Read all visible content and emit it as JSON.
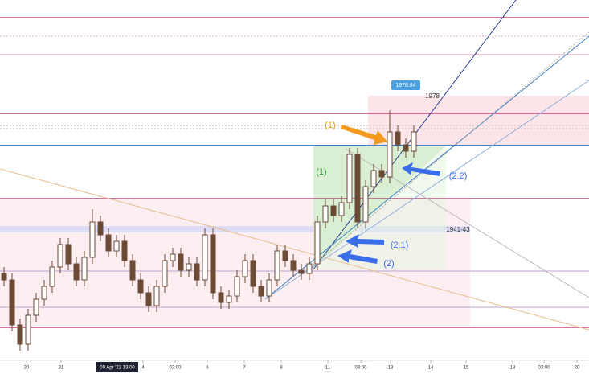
{
  "chart_data": {
    "type": "candlestick",
    "x": [
      0.5,
      1.5,
      2.5,
      3.5,
      4.5,
      5.5,
      6.5,
      7.5,
      8.5,
      9.5,
      10.5,
      11.5,
      12.5,
      13.5,
      14.5,
      15.5,
      16.5,
      17.5,
      18.5,
      19.5,
      20.5,
      21.5,
      22.5,
      23.5,
      24.5,
      25.5,
      26.5,
      27.5,
      28.5,
      29.5,
      30.5,
      31.5,
      32.5,
      33.5,
      34.5,
      35.5,
      36.5,
      37.5,
      38.5,
      39.5,
      40.5,
      41.5,
      42.5,
      43.5,
      44.5,
      45.5,
      46.5,
      47.5,
      48.5,
      49.5,
      50.5,
      51.5
    ],
    "open": [
      1928,
      1926,
      1912,
      1906,
      1915,
      1920,
      1924,
      1930,
      1937,
      1931,
      1926,
      1933,
      1944,
      1940,
      1935,
      1938,
      1932,
      1926,
      1922,
      1918,
      1924,
      1932,
      1934,
      1929,
      1931,
      1926,
      1940,
      1922,
      1919,
      1921,
      1927,
      1932,
      1924,
      1921,
      1926,
      1935,
      1932,
      1929,
      1928,
      1931,
      1944,
      1949,
      1946,
      1950,
      1965,
      1944,
      1955,
      1960,
      1958,
      1972,
      1968,
      1966
    ],
    "high": [
      1930,
      1928,
      1914,
      1917,
      1922,
      1926,
      1932,
      1939,
      1939,
      1933,
      1935,
      1948,
      1946,
      1942,
      1940,
      1940,
      1934,
      1928,
      1924,
      1926,
      1934,
      1936,
      1936,
      1933,
      1933,
      1942,
      1942,
      1924,
      1923,
      1929,
      1934,
      1934,
      1926,
      1928,
      1937,
      1937,
      1934,
      1931,
      1933,
      1946,
      1951,
      1951,
      1952,
      1967,
      1967,
      1957,
      1962,
      1962,
      1978.64,
      1974,
      1970,
      1974
    ],
    "low": [
      1924,
      1910,
      1904,
      1904,
      1913,
      1918,
      1922,
      1928,
      1929,
      1924,
      1924,
      1931,
      1938,
      1933,
      1933,
      1930,
      1924,
      1920,
      1916,
      1916,
      1922,
      1930,
      1927,
      1927,
      1924,
      1924,
      1920,
      1917,
      1917,
      1919,
      1925,
      1922,
      1919,
      1919,
      1924,
      1930,
      1927,
      1926,
      1926,
      1929,
      1942,
      1944,
      1944,
      1948,
      1942,
      1942,
      1953,
      1956,
      1956,
      1966,
      1964,
      1964
    ],
    "close": [
      1926,
      1912,
      1906,
      1915,
      1920,
      1924,
      1930,
      1937,
      1931,
      1926,
      1933,
      1944,
      1940,
      1935,
      1938,
      1932,
      1926,
      1922,
      1918,
      1924,
      1932,
      1934,
      1929,
      1931,
      1926,
      1940,
      1922,
      1919,
      1921,
      1927,
      1932,
      1924,
      1921,
      1926,
      1935,
      1932,
      1929,
      1928,
      1931,
      1944,
      1949,
      1946,
      1950,
      1965,
      1944,
      1955,
      1960,
      1958,
      1972,
      1968,
      1966,
      1972
    ],
    "color": "#6b4a36",
    "xlim": [
      0,
      73.3
    ],
    "ylim": [
      1902,
      2013
    ],
    "xticks": [
      {
        "value": 3.3,
        "label": "30"
      },
      {
        "value": 7.6,
        "label": "31"
      },
      {
        "value": 17.8,
        "label": "4"
      },
      {
        "value": 21.8,
        "label": "03:00"
      },
      {
        "value": 25.8,
        "label": "6"
      },
      {
        "value": 30.4,
        "label": "7"
      },
      {
        "value": 35,
        "label": "8"
      },
      {
        "value": 40.8,
        "label": "11"
      },
      {
        "value": 44.9,
        "label": "03:00"
      },
      {
        "value": 48.6,
        "label": "13"
      },
      {
        "value": 53.6,
        "label": "14"
      },
      {
        "value": 58,
        "label": "15"
      },
      {
        "value": 63.8,
        "label": "18"
      },
      {
        "value": 67.7,
        "label": "03:00"
      },
      {
        "value": 71.8,
        "label": "20"
      }
    ],
    "crosshair_label": "09 Apr '22   13:00",
    "annotations": [
      "1978.64",
      "1978",
      "1941-43",
      "(1)",
      "(1)",
      "(2.2)",
      "(2.1)",
      "(2)"
    ]
  }
}
